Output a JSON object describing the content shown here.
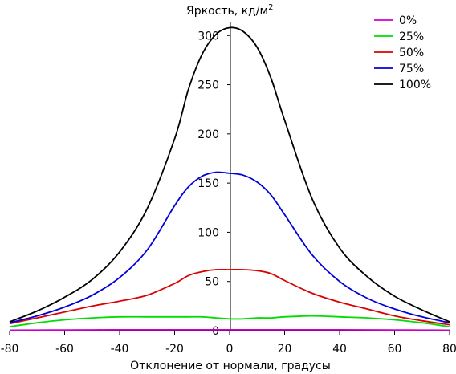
{
  "chart_data": {
    "type": "line",
    "title": "",
    "ylabel": "Яркость, кд/м",
    "ylabel_superscript": "2",
    "xlabel": "Отклонение от нормали, градусы",
    "xlim": [
      -80,
      80
    ],
    "ylim": [
      0,
      310
    ],
    "x_ticks": [
      "-80",
      "-60",
      "-40",
      "-20",
      "0",
      "20",
      "40",
      "60",
      "80"
    ],
    "y_ticks": [
      "0",
      "50",
      "100",
      "150",
      "200",
      "250",
      "300"
    ],
    "grid": false,
    "legend_position": "top-right",
    "x": [
      -80,
      -70,
      -60,
      -50,
      -40,
      -30,
      -20,
      -15,
      -10,
      -5,
      0,
      5,
      10,
      15,
      20,
      30,
      40,
      50,
      60,
      70,
      80
    ],
    "series": [
      {
        "name": "0%",
        "color": "#cc00cc",
        "values": [
          0.5,
          0.6,
          0.7,
          0.8,
          0.9,
          0.9,
          0.9,
          0.9,
          0.9,
          0.9,
          0.9,
          0.9,
          0.9,
          0.9,
          0.9,
          0.9,
          0.9,
          0.8,
          0.7,
          0.6,
          0.5
        ]
      },
      {
        "name": "25%",
        "color": "#00dd00",
        "values": [
          4,
          8,
          11,
          13,
          14,
          14,
          14,
          14,
          14,
          13,
          12,
          12,
          13,
          13,
          14,
          15,
          14,
          13,
          11,
          8,
          4
        ]
      },
      {
        "name": "50%",
        "color": "#dd0000",
        "values": [
          7,
          13,
          19,
          25,
          30,
          36,
          48,
          56,
          60,
          62,
          62,
          62,
          61,
          58,
          51,
          38,
          29,
          22,
          15,
          10,
          6
        ]
      },
      {
        "name": "75%",
        "color": "#0000dd",
        "values": [
          8,
          15,
          24,
          36,
          54,
          82,
          127,
          146,
          157,
          161,
          160,
          158,
          151,
          138,
          118,
          77,
          50,
          33,
          22,
          14,
          8
        ]
      },
      {
        "name": "100%",
        "color": "#000000",
        "values": [
          9,
          20,
          34,
          52,
          80,
          124,
          195,
          245,
          281,
          301,
          308,
          304,
          288,
          257,
          214,
          134,
          84,
          55,
          35,
          21,
          9
        ]
      }
    ]
  }
}
